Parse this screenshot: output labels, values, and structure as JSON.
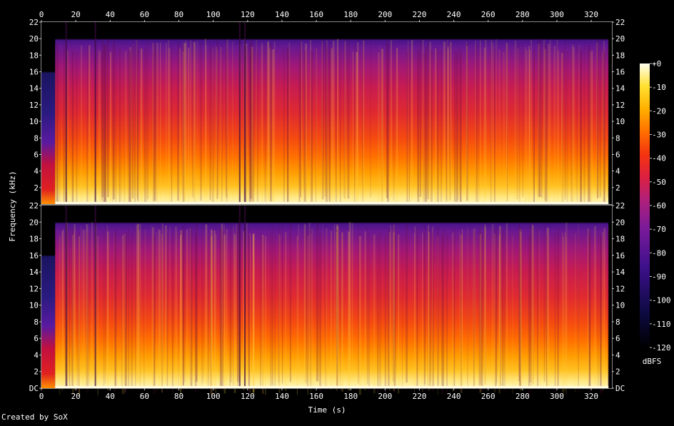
{
  "chart_data": {
    "type": "heatmap",
    "xlabel": "Time (s)",
    "ylabel": "Frequency (kHz)",
    "x_ticks": [
      0,
      20,
      40,
      60,
      80,
      100,
      120,
      140,
      160,
      180,
      200,
      220,
      240,
      260,
      280,
      300,
      320
    ],
    "xlim": [
      0,
      332
    ],
    "channels": [
      {
        "y_tick_labels": [
          "22",
          "20",
          "18",
          "16",
          "14",
          "12",
          "10",
          "8",
          "6",
          "4",
          "2"
        ],
        "y_tick_values": [
          22,
          20,
          18,
          16,
          14,
          12,
          10,
          8,
          6,
          4,
          2
        ],
        "ylim": [
          0,
          22
        ]
      },
      {
        "y_tick_labels": [
          "22",
          "20",
          "18",
          "16",
          "14",
          "12",
          "10",
          "8",
          "6",
          "4",
          "2",
          "DC"
        ],
        "y_tick_values": [
          22,
          20,
          18,
          16,
          14,
          12,
          10,
          8,
          6,
          4,
          2,
          0
        ],
        "ylim": [
          0,
          22
        ]
      }
    ],
    "colorbar": {
      "label": "dBFS",
      "tick_labels": [
        "+0",
        "-10",
        "-20",
        "-30",
        "-40",
        "-50",
        "-60",
        "-70",
        "-80",
        "-90",
        "-100",
        "-110",
        "-120"
      ],
      "tick_values": [
        0,
        -10,
        -20,
        -30,
        -40,
        -50,
        -60,
        -70,
        -80,
        -90,
        -100,
        -110,
        -120
      ],
      "range": [
        -120,
        0
      ]
    },
    "spectral_cutoff_khz": 20,
    "quiet_intro_s": 8,
    "credit": "Created by SoX"
  }
}
